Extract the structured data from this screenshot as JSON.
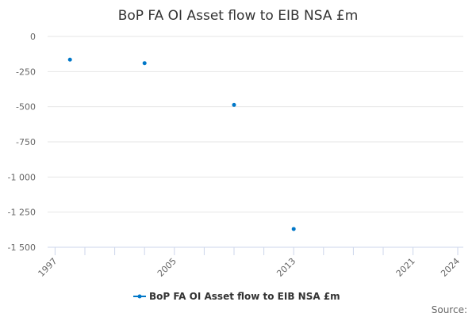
{
  "chart_data": {
    "type": "scatter",
    "title": "BoP FA OI Asset flow to EIB NSA £m",
    "xlabel": "",
    "ylabel": "",
    "xlim": [
      1997,
      2024
    ],
    "ylim": [
      -1500,
      0
    ],
    "x_ticks": [
      "1997",
      "2005",
      "2013",
      "2021",
      "2024"
    ],
    "y_ticks": [
      0,
      -250,
      -500,
      -750,
      -1000,
      -1250,
      -1500
    ],
    "y_tick_labels": [
      "0",
      "-250",
      "-500",
      "-750",
      "-1 000",
      "-1 250",
      "-1 500"
    ],
    "grid": "horizontal",
    "legend_position": "bottom",
    "series": [
      {
        "name": "BoP FA OI Asset flow to EIB NSA £m",
        "color": "#0077c8",
        "x": [
          1998,
          2003,
          2009,
          2013
        ],
        "y": [
          -165,
          -190,
          -487,
          -1370
        ]
      }
    ]
  },
  "credit": "Source:"
}
